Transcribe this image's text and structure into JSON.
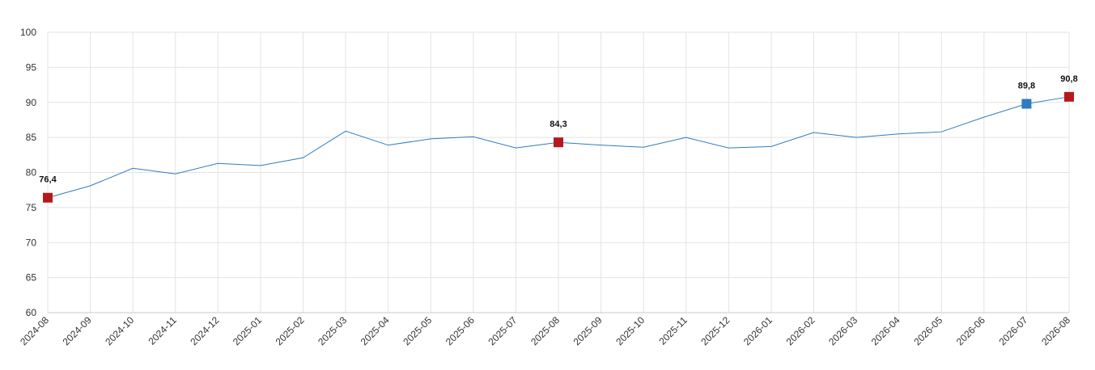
{
  "chart_data": {
    "type": "line",
    "title": "",
    "xlabel": "",
    "ylabel": "",
    "ylim": [
      60,
      100
    ],
    "yticks": [
      60,
      65,
      70,
      75,
      80,
      85,
      90,
      95,
      100
    ],
    "grid": true,
    "legend": "none",
    "categories": [
      "2024-08",
      "2024-09",
      "2024-10",
      "2024-11",
      "2024-12",
      "2025-01",
      "2025-02",
      "2025-03",
      "2025-04",
      "2025-05",
      "2025-06",
      "2025-07",
      "2025-08",
      "2025-09",
      "2025-10",
      "2025-11",
      "2025-12",
      "2026-01",
      "2026-02",
      "2026-03",
      "2026-04",
      "2026-05",
      "2026-06",
      "2026-07",
      "2026-08"
    ],
    "series": [
      {
        "color": "#2f7bbf",
        "values": [
          76.4,
          78.1,
          80.6,
          79.8,
          81.3,
          81.0,
          82.1,
          85.9,
          83.9,
          84.8,
          85.1,
          83.5,
          84.3,
          83.9,
          83.6,
          85.0,
          83.5,
          83.7,
          85.7,
          85.0,
          85.5,
          85.8,
          87.9,
          89.8,
          90.8
        ]
      }
    ],
    "highlights": [
      {
        "index": 0,
        "label": "76,4",
        "color": "#b5191c"
      },
      {
        "index": 12,
        "label": "84,3",
        "color": "#b5191c"
      },
      {
        "index": 23,
        "label": "89,8",
        "color": "#2f7bbf"
      },
      {
        "index": 24,
        "label": "90,8",
        "color": "#b5191c"
      }
    ]
  }
}
